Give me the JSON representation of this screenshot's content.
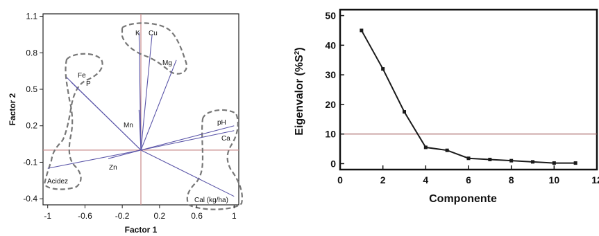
{
  "chart_data": [
    {
      "type": "biplot",
      "xlabel": "Factor 1",
      "ylabel": "Factor 2",
      "xlim": [
        -1.05,
        1.05
      ],
      "ylim": [
        -0.45,
        1.12
      ],
      "xticks": [
        -1,
        -0.6,
        -0.2,
        0.2,
        0.6,
        1
      ],
      "xtick_labels": [
        "-1",
        "-0.6",
        "-0.2",
        "0.2",
        "0.6",
        "1"
      ],
      "yticks": [
        -0.4,
        -0.1,
        0.2,
        0.5,
        0.8,
        1.1
      ],
      "ytick_labels": [
        "-0.4",
        "-0.1",
        "0.2",
        "0.5",
        "0.8",
        "1.1"
      ],
      "reference_lines": {
        "x": 0,
        "y": 0,
        "color": "#c98a8a"
      },
      "vectors": [
        {
          "name": "K",
          "x": -0.02,
          "y": 0.97
        },
        {
          "name": "Cu",
          "x": 0.12,
          "y": 0.95
        },
        {
          "name": "Mg",
          "x": 0.38,
          "y": 0.74
        },
        {
          "name": "Fe",
          "x": -0.8,
          "y": 0.6
        },
        {
          "name": "P",
          "x": -0.75,
          "y": 0.56
        },
        {
          "name": "Mn",
          "x": -0.02,
          "y": 0.33
        },
        {
          "name": "pH",
          "x": 1.0,
          "y": 0.2
        },
        {
          "name": "Ca",
          "x": 1.0,
          "y": 0.16
        },
        {
          "name": "Zn",
          "x": -0.35,
          "y": -0.07
        },
        {
          "name": "Acidez",
          "x": -1.0,
          "y": -0.15
        },
        {
          "name": "Cal (kg/ha)",
          "x": 1.0,
          "y": -0.38
        }
      ],
      "label_text": {
        "K": "K",
        "Cu": "Cu",
        "Mg": "Mg",
        "Fe": "Fe",
        "P": "P",
        "Mn": "Mn",
        "pH": "pH",
        "Ca": "Ca",
        "Zn": "Zn",
        "Acidez": "Acidez",
        "Cal": "Cal (kg/ha)"
      },
      "vector_color": "#5a55a8",
      "group_outline_color": "#777777"
    },
    {
      "type": "line",
      "xlabel": "Componente",
      "ylabel": "Eigenvalor (%S",
      "ylabel_superscript": "2",
      "ylabel_close": ")",
      "xlim": [
        0,
        12
      ],
      "ylim": [
        -2,
        52
      ],
      "xticks": [
        0,
        2,
        4,
        6,
        8,
        10,
        12
      ],
      "xtick_labels": [
        "0",
        "2",
        "4",
        "6",
        "8",
        "10",
        "12"
      ],
      "yticks": [
        0,
        10,
        20,
        30,
        40,
        50
      ],
      "ytick_labels": [
        "0",
        "10",
        "20",
        "30",
        "40",
        "50"
      ],
      "x": [
        1,
        2,
        3,
        4,
        5,
        6,
        7,
        8,
        9,
        10,
        11
      ],
      "y": [
        45,
        32,
        17.5,
        5.5,
        4.5,
        1.8,
        1.4,
        1.0,
        0.6,
        0.2,
        0.2
      ],
      "reference_line": {
        "y": 10,
        "color": "#a05a5a"
      },
      "line_color": "#1a1a1a"
    }
  ]
}
